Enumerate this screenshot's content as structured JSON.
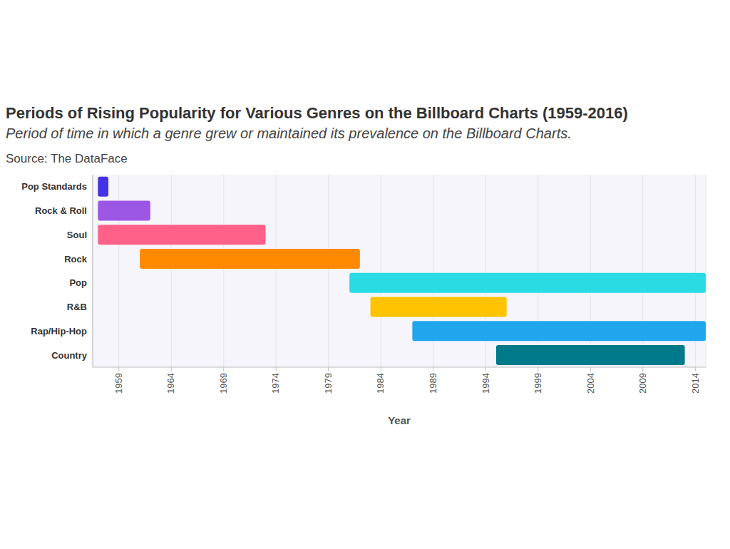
{
  "chart_data": {
    "type": "bar",
    "orientation": "horizontal",
    "title": "Periods of Rising Popularity for Various Genres on the Billboard Charts (1959-2016)",
    "subtitle": "Period of time in which a genre grew or maintained its prevalence on the Billboard Charts.",
    "source": "Source: The DataFace",
    "x_label": "Year",
    "categories": [
      "Pop Standards",
      "Rock & Roll",
      "Soul",
      "Rock",
      "Pop",
      "R&B",
      "Rap/Hip-Hop",
      "Country"
    ],
    "values": [
      [
        1957,
        1958
      ],
      [
        1957,
        1962
      ],
      [
        1957,
        1973
      ],
      [
        1961,
        1982
      ],
      [
        1981,
        2015
      ],
      [
        1983,
        1996
      ],
      [
        1987,
        2015
      ],
      [
        1995,
        2013
      ]
    ],
    "colors": [
      "#4433e6",
      "#9b56e3",
      "#ff6189",
      "#ff8a00",
      "#2adbe3",
      "#ffc300",
      "#1fa6ec",
      "#00798a"
    ],
    "xlim": [
      1956.5,
      2015
    ],
    "xticks": [
      1959,
      1964,
      1969,
      1974,
      1979,
      1984,
      1989,
      1994,
      1999,
      2004,
      2009,
      2014
    ],
    "grid": true
  }
}
